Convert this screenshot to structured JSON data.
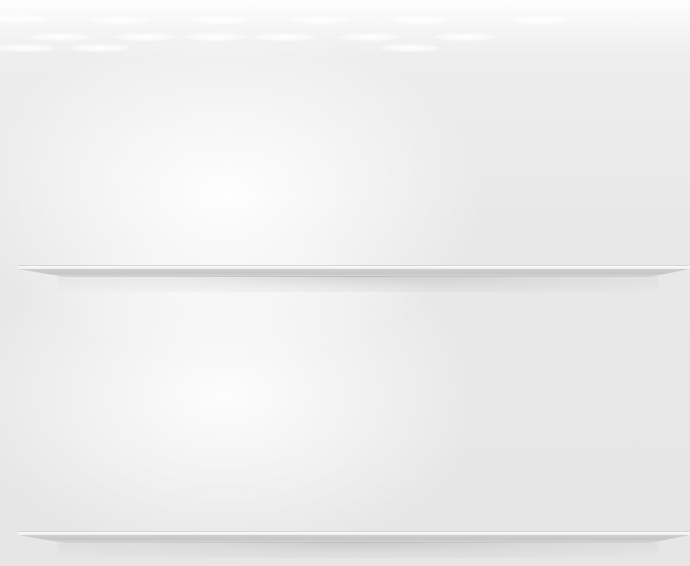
{
  "scene": {
    "background_color": "#e6e6e6",
    "shelf_color": "#cfcfcf",
    "ceiling_light_count": 15,
    "shelf_count": 2
  }
}
